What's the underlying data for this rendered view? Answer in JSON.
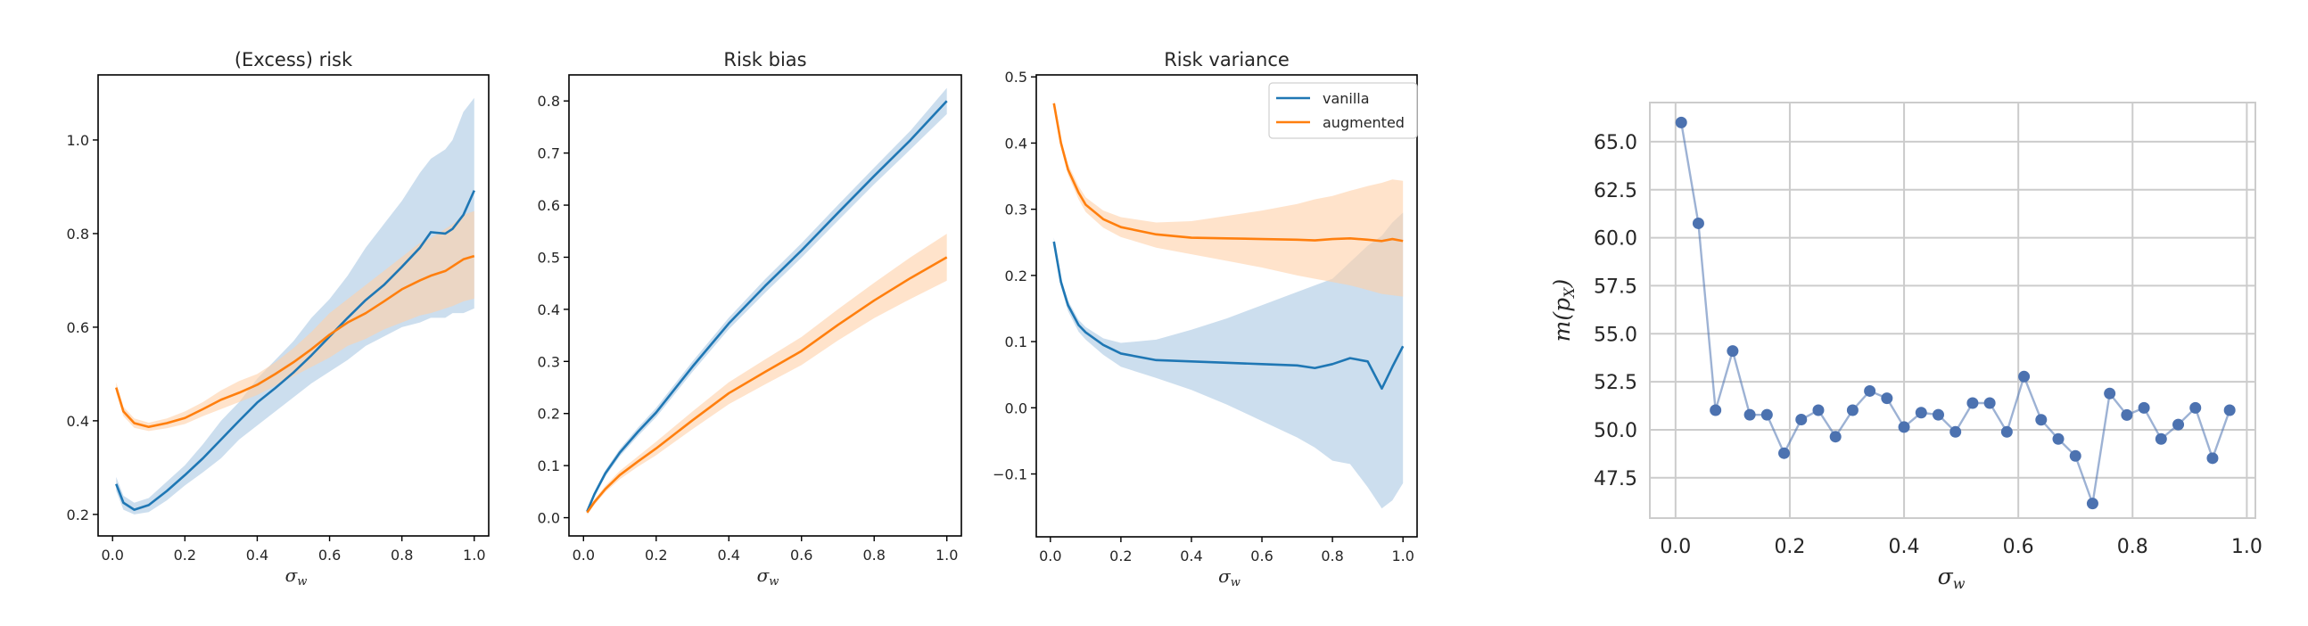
{
  "colors": {
    "vanilla": "#1f77b4",
    "augmented": "#ff7f0e",
    "vanilla_band": "#aac8e2",
    "augmented_band": "#ffd0a8",
    "scatter": "#4c72b0",
    "grid": "#cccccc"
  },
  "chart_data": [
    {
      "type": "line",
      "title": "(Excess) risk",
      "xlabel": "σ",
      "xlabel_sub": "w",
      "ylabel": "",
      "xlim": [
        -0.04,
        1.04
      ],
      "ylim": [
        0.154,
        1.139
      ],
      "xticks": [
        "0.0",
        "0.2",
        "0.4",
        "0.6",
        "0.8",
        "1.0"
      ],
      "yticks": [
        "0.2",
        "0.4",
        "0.6",
        "0.8",
        "1.0"
      ],
      "grid": false,
      "x": [
        0.01,
        0.03,
        0.06,
        0.1,
        0.15,
        0.2,
        0.25,
        0.3,
        0.35,
        0.4,
        0.45,
        0.5,
        0.55,
        0.6,
        0.65,
        0.7,
        0.75,
        0.8,
        0.85,
        0.88,
        0.92,
        0.94,
        0.97,
        1.0
      ],
      "series": [
        {
          "name": "vanilla",
          "mean": [
            0.265,
            0.225,
            0.21,
            0.22,
            0.25,
            0.284,
            0.32,
            0.36,
            0.4,
            0.439,
            0.47,
            0.503,
            0.54,
            0.58,
            0.62,
            0.658,
            0.69,
            0.729,
            0.77,
            0.803,
            0.8,
            0.81,
            0.84,
            0.892
          ],
          "lower": [
            0.25,
            0.21,
            0.2,
            0.205,
            0.23,
            0.262,
            0.29,
            0.32,
            0.36,
            0.39,
            0.42,
            0.45,
            0.48,
            0.505,
            0.53,
            0.56,
            0.58,
            0.6,
            0.61,
            0.62,
            0.62,
            0.63,
            0.63,
            0.64
          ],
          "upper": [
            0.28,
            0.24,
            0.225,
            0.235,
            0.27,
            0.305,
            0.35,
            0.4,
            0.44,
            0.49,
            0.53,
            0.57,
            0.62,
            0.66,
            0.71,
            0.77,
            0.82,
            0.87,
            0.93,
            0.96,
            0.98,
            1.0,
            1.06,
            1.09
          ]
        },
        {
          "name": "augmented",
          "mean": [
            0.471,
            0.42,
            0.395,
            0.387,
            0.395,
            0.406,
            0.425,
            0.445,
            0.46,
            0.477,
            0.5,
            0.525,
            0.553,
            0.584,
            0.61,
            0.63,
            0.655,
            0.681,
            0.7,
            0.71,
            0.72,
            0.73,
            0.745,
            0.752
          ],
          "lower": [
            0.46,
            0.41,
            0.385,
            0.378,
            0.384,
            0.393,
            0.41,
            0.425,
            0.44,
            0.455,
            0.475,
            0.495,
            0.515,
            0.535,
            0.56,
            0.575,
            0.595,
            0.61,
            0.625,
            0.63,
            0.64,
            0.645,
            0.655,
            0.661
          ],
          "upper": [
            0.482,
            0.43,
            0.405,
            0.396,
            0.405,
            0.42,
            0.44,
            0.465,
            0.485,
            0.5,
            0.525,
            0.555,
            0.59,
            0.63,
            0.66,
            0.69,
            0.72,
            0.75,
            0.78,
            0.79,
            0.81,
            0.82,
            0.84,
            0.848
          ]
        }
      ]
    },
    {
      "type": "line",
      "title": "Risk bias",
      "xlabel": "σ",
      "xlabel_sub": "w",
      "ylabel": "",
      "xlim": [
        -0.04,
        1.04
      ],
      "ylim": [
        -0.035,
        0.85
      ],
      "xticks": [
        "0.0",
        "0.2",
        "0.4",
        "0.6",
        "0.8",
        "1.0"
      ],
      "yticks": [
        "0.0",
        "0.1",
        "0.2",
        "0.3",
        "0.4",
        "0.5",
        "0.6",
        "0.7",
        "0.8"
      ],
      "grid": false,
      "x": [
        0.01,
        0.03,
        0.06,
        0.1,
        0.15,
        0.2,
        0.3,
        0.4,
        0.5,
        0.6,
        0.7,
        0.8,
        0.9,
        1.0
      ],
      "series": [
        {
          "name": "vanilla",
          "mean": [
            0.012,
            0.045,
            0.085,
            0.125,
            0.165,
            0.202,
            0.29,
            0.373,
            0.445,
            0.513,
            0.585,
            0.656,
            0.725,
            0.8
          ],
          "lower": [
            0.008,
            0.04,
            0.079,
            0.118,
            0.157,
            0.193,
            0.28,
            0.362,
            0.432,
            0.499,
            0.57,
            0.64,
            0.707,
            0.775
          ],
          "upper": [
            0.016,
            0.05,
            0.091,
            0.132,
            0.173,
            0.211,
            0.3,
            0.384,
            0.458,
            0.527,
            0.6,
            0.672,
            0.743,
            0.825
          ]
        },
        {
          "name": "augmented",
          "mean": [
            0.01,
            0.03,
            0.055,
            0.082,
            0.108,
            0.133,
            0.187,
            0.239,
            0.28,
            0.32,
            0.37,
            0.417,
            0.46,
            0.5
          ],
          "lower": [
            0.006,
            0.025,
            0.049,
            0.074,
            0.098,
            0.12,
            0.17,
            0.218,
            0.256,
            0.293,
            0.34,
            0.383,
            0.42,
            0.455
          ],
          "upper": [
            0.014,
            0.035,
            0.061,
            0.09,
            0.118,
            0.146,
            0.204,
            0.26,
            0.304,
            0.347,
            0.4,
            0.451,
            0.5,
            0.545
          ]
        }
      ]
    },
    {
      "type": "line",
      "title": "Risk variance",
      "xlabel": "σ",
      "xlabel_sub": "w",
      "ylabel": "",
      "xlim": [
        -0.04,
        1.04
      ],
      "ylim": [
        -0.195,
        0.503
      ],
      "xticks": [
        "0.0",
        "0.2",
        "0.4",
        "0.6",
        "0.8",
        "1.0"
      ],
      "yticks": [
        "−0.1",
        "0.0",
        "0.1",
        "0.2",
        "0.3",
        "0.4",
        "0.5"
      ],
      "ytick_values": [
        -0.1,
        0.0,
        0.1,
        0.2,
        0.3,
        0.4,
        0.5
      ],
      "grid": false,
      "legend": {
        "position": "upper right",
        "entries": [
          "vanilla",
          "augmented"
        ]
      },
      "x": [
        0.01,
        0.03,
        0.05,
        0.08,
        0.1,
        0.15,
        0.2,
        0.3,
        0.4,
        0.5,
        0.6,
        0.7,
        0.75,
        0.8,
        0.85,
        0.9,
        0.94,
        0.97,
        1.0
      ],
      "series": [
        {
          "name": "vanilla",
          "mean": [
            0.251,
            0.19,
            0.155,
            0.125,
            0.114,
            0.095,
            0.082,
            0.072,
            0.07,
            0.068,
            0.066,
            0.064,
            0.06,
            0.066,
            0.075,
            0.07,
            0.029,
            0.062,
            0.093
          ],
          "lower": [
            0.245,
            0.183,
            0.146,
            0.115,
            0.103,
            0.08,
            0.062,
            0.045,
            0.027,
            0.005,
            -0.02,
            -0.045,
            -0.06,
            -0.08,
            -0.085,
            -0.12,
            -0.152,
            -0.14,
            -0.114
          ],
          "upper": [
            0.257,
            0.197,
            0.162,
            0.133,
            0.122,
            0.105,
            0.098,
            0.103,
            0.118,
            0.135,
            0.155,
            0.175,
            0.185,
            0.195,
            0.22,
            0.245,
            0.26,
            0.28,
            0.295
          ]
        },
        {
          "name": "augmented",
          "mean": [
            0.46,
            0.4,
            0.36,
            0.325,
            0.307,
            0.285,
            0.273,
            0.262,
            0.257,
            0.256,
            0.255,
            0.254,
            0.253,
            0.255,
            0.256,
            0.254,
            0.252,
            0.255,
            0.252
          ],
          "lower": [
            0.455,
            0.393,
            0.352,
            0.315,
            0.296,
            0.272,
            0.258,
            0.242,
            0.232,
            0.222,
            0.212,
            0.2,
            0.195,
            0.19,
            0.185,
            0.178,
            0.172,
            0.17,
            0.168
          ],
          "upper": [
            0.465,
            0.407,
            0.368,
            0.335,
            0.318,
            0.298,
            0.288,
            0.28,
            0.282,
            0.29,
            0.298,
            0.308,
            0.315,
            0.32,
            0.328,
            0.335,
            0.34,
            0.345,
            0.343
          ]
        }
      ]
    },
    {
      "type": "line",
      "markers": true,
      "title": "",
      "xlabel": "σ",
      "xlabel_sub": "w",
      "ylabel": "m(p",
      "ylabel_sub": "X",
      "ylabel_close": ")",
      "xlim": [
        -0.045,
        1.015
      ],
      "ylim": [
        45.4,
        67.04
      ],
      "xticks": [
        "0.0",
        "0.2",
        "0.4",
        "0.6",
        "0.8",
        "1.0"
      ],
      "yticks": [
        "47.5",
        "50.0",
        "52.5",
        "55.0",
        "57.5",
        "60.0",
        "62.5",
        "65.0"
      ],
      "grid": true,
      "series": [
        {
          "name": "m(p_X)",
          "x": [
            0.01,
            0.04,
            0.07,
            0.1,
            0.13,
            0.16,
            0.19,
            0.22,
            0.25,
            0.28,
            0.31,
            0.34,
            0.37,
            0.4,
            0.43,
            0.46,
            0.49,
            0.52,
            0.55,
            0.58,
            0.61,
            0.64,
            0.67,
            0.7,
            0.73,
            0.76,
            0.79,
            0.82,
            0.85,
            0.88,
            0.91,
            0.94,
            0.97
          ],
          "y": [
            66.0,
            60.75,
            51.02,
            54.1,
            50.78,
            50.78,
            48.78,
            50.53,
            51.02,
            49.64,
            51.02,
            52.02,
            51.64,
            50.14,
            50.89,
            50.78,
            49.89,
            51.39,
            51.39,
            49.89,
            52.77,
            50.52,
            49.52,
            48.64,
            46.16,
            51.89,
            50.77,
            51.14,
            49.52,
            50.27,
            51.14,
            48.52,
            51.02
          ]
        }
      ]
    }
  ]
}
